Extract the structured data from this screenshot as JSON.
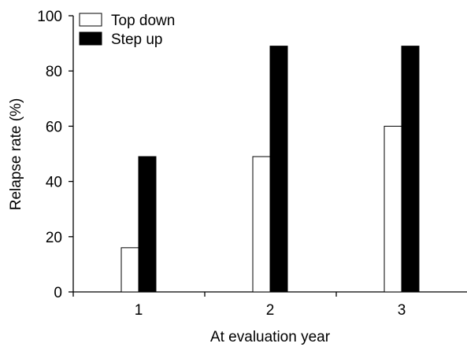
{
  "chart_data": {
    "type": "bar",
    "categories": [
      "1",
      "2",
      "3"
    ],
    "series": [
      {
        "name": "Top down",
        "values": [
          16,
          49,
          60
        ],
        "fill": "#ffffff",
        "stroke": "#000000"
      },
      {
        "name": "Step up",
        "values": [
          49,
          89,
          89
        ],
        "fill": "#000000",
        "stroke": "#000000"
      }
    ],
    "xlabel": "At evaluation year",
    "ylabel": "Relapse rate (%)",
    "ylim": [
      0,
      100
    ],
    "yticks": [
      0,
      20,
      40,
      60,
      80,
      100
    ],
    "grid": false,
    "legend_position": "top-left"
  }
}
